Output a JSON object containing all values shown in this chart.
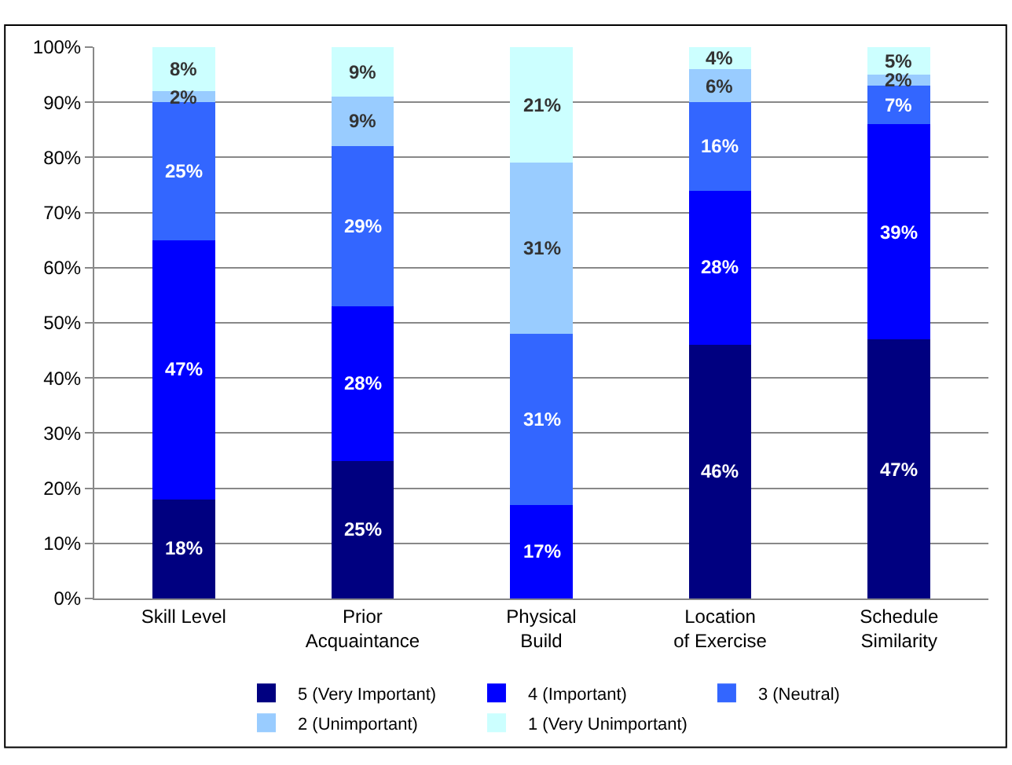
{
  "chart_data": {
    "type": "bar",
    "stacked": true,
    "categories": [
      "Skill Level",
      "Prior Acquaintance",
      "Physical Build",
      "Location of Exercise",
      "Schedule Similarity"
    ],
    "series": [
      {
        "name": "5 (Very Important)",
        "color": "#000080",
        "values": [
          18,
          25,
          0,
          46,
          47
        ],
        "value_labels": [
          "18%",
          "25%",
          null,
          "46%",
          "47%"
        ]
      },
      {
        "name": "4 (Important)",
        "color": "#0000ff",
        "values": [
          47,
          28,
          17,
          28,
          39
        ],
        "value_labels": [
          "47%",
          "28%",
          "17%",
          "28%",
          "39%"
        ]
      },
      {
        "name": "3 (Neutral)",
        "color": "#3366ff",
        "values": [
          25,
          29,
          31,
          16,
          7
        ],
        "value_labels": [
          "25%",
          "29%",
          "31%",
          "16%",
          "7%"
        ]
      },
      {
        "name": "2 (Unimportant)",
        "color": "#99ccff",
        "values": [
          2,
          9,
          31,
          6,
          2
        ],
        "value_labels": [
          "2%",
          "9%",
          "31%",
          "6%",
          "2%"
        ]
      },
      {
        "name": "1 (Very Unimportant)",
        "color": "#ccffff",
        "values": [
          8,
          9,
          21,
          4,
          5
        ],
        "value_labels": [
          "8%",
          "9%",
          "21%",
          "4%",
          "5%"
        ]
      }
    ],
    "ylim": [
      0,
      100
    ],
    "yticks": [
      {
        "value": 0,
        "label": "0%"
      },
      {
        "value": 10,
        "label": "10%"
      },
      {
        "value": 20,
        "label": "20%"
      },
      {
        "value": 30,
        "label": "30%"
      },
      {
        "value": 40,
        "label": "40%"
      },
      {
        "value": 50,
        "label": "50%"
      },
      {
        "value": 60,
        "label": "60%"
      },
      {
        "value": 70,
        "label": "70%"
      },
      {
        "value": 80,
        "label": "80%"
      },
      {
        "value": 90,
        "label": "90%"
      },
      {
        "value": 100,
        "label": "100%"
      }
    ],
    "grid": "y",
    "legend": "bottom"
  }
}
